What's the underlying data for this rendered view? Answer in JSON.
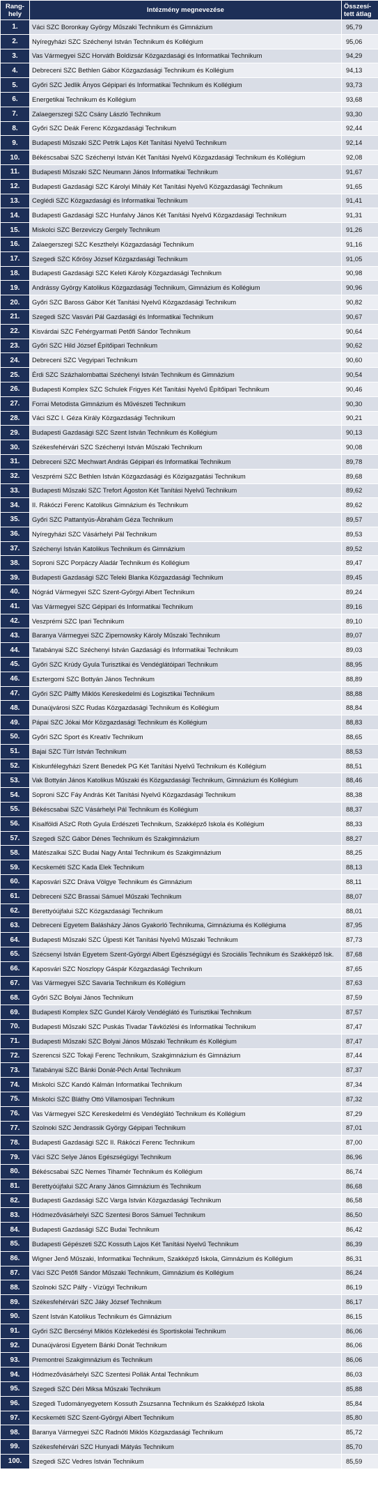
{
  "header": {
    "rank": "Rang-\nhely",
    "name": "Intézmény megnevezése",
    "score": "Összesí-\ntett átlag"
  },
  "rows": [
    [
      "1.",
      "Váci SZC Boronkay György Műszaki Technikum és Gimnázium",
      "95,79"
    ],
    [
      "2.",
      "Nyíregyházi SZC Széchenyi István Technikum és Kollégium",
      "95,06"
    ],
    [
      "3.",
      "Vas Vármegyei SZC Horváth Boldizsár Közgazdasági és Informatikai Technikum",
      "94,29"
    ],
    [
      "4.",
      "Debreceni SZC Bethlen Gábor Közgazdasági Technikum és Kollégium",
      "94,13"
    ],
    [
      "5.",
      "Győri SZC Jedlik Ányos Gépipari és Informatikai Technikum és Kollégium",
      "93,73"
    ],
    [
      "6.",
      "Energetikai Technikum és Kollégium",
      "93,68"
    ],
    [
      "7.",
      "Zalaegerszegi SZC Csány László Technikum",
      "93,30"
    ],
    [
      "8.",
      "Győri SZC Deák Ferenc Közgazdasági Technikum",
      "92,44"
    ],
    [
      "9.",
      "Budapesti Műszaki SZC Petrik Lajos Két Tanítási Nyelvű Technikum",
      "92,14"
    ],
    [
      "10.",
      "Békéscsabai SZC Széchenyi István Két Tanítási Nyelvű Közgazdasági Technikum és Kollégium",
      "92,08"
    ],
    [
      "11.",
      "Budapesti Műszaki SZC Neumann János Informatikai Technikum",
      "91,67"
    ],
    [
      "12.",
      "Budapesti Gazdasági SZC Károlyi Mihály Két Tanítási Nyelvű Közgazdasági Technikum",
      "91,65"
    ],
    [
      "13.",
      "Ceglédi SZC Közgazdasági és Informatikai Technikum",
      "91,41"
    ],
    [
      "14.",
      "Budapesti Gazdasági SZC Hunfalvy János Két Tanítási Nyelvű Közgazdasági Technikum",
      "91,31"
    ],
    [
      "15.",
      "Miskolci SZC Berzeviczy Gergely Technikum",
      "91,26"
    ],
    [
      "16.",
      "Zalaegerszegi SZC Keszthelyi Közgazdasági Technikum",
      "91,16"
    ],
    [
      "17.",
      "Szegedi SZC Kőrösy József Közgazdasági Technikum",
      "91,05"
    ],
    [
      "18.",
      "Budapesti Gazdasági SZC Keleti Károly Közgazdasági Technikum",
      "90,98"
    ],
    [
      "19.",
      "Andrássy György Katolikus Közgazdasági Technikum, Gimnázium és Kollégium",
      "90,96"
    ],
    [
      "20.",
      "Győri SZC Baross Gábor Két Tanítási Nyelvű Közgazdasági Technikum",
      "90,82"
    ],
    [
      "21.",
      "Szegedi SZC Vasvári Pál Gazdasági és Informatikai Technikum",
      "90,67"
    ],
    [
      "22.",
      "Kisvárdai SZC Fehérgyarmati Petőfi Sándor Technikum",
      "90,64"
    ],
    [
      "23.",
      "Győri SZC Hild József Építőipari Technikum",
      "90,62"
    ],
    [
      "24.",
      "Debreceni SZC Vegyipari Technikum",
      "90,60"
    ],
    [
      "25.",
      "Érdi SZC Százhalombattai Széchenyi István Technikum és Gimnázium",
      "90,54"
    ],
    [
      "26.",
      "Budapesti Komplex SZC Schulek Frigyes Két Tanítási Nyelvű Építőipari Technikum",
      "90,46"
    ],
    [
      "27.",
      "Forrai Metodista Gimnázium és Művészeti Technikum",
      "90,30"
    ],
    [
      "28.",
      "Váci SZC I. Géza Király Közgazdasági Technikum",
      "90,21"
    ],
    [
      "29.",
      "Budapesti Gazdasági SZC Szent István Technikum és Kollégium",
      "90,13"
    ],
    [
      "30.",
      "Székesfehérvári SZC Széchenyi István Műszaki Technikum",
      "90,08"
    ],
    [
      "31.",
      "Debreceni SZC Mechwart András Gépipari és Informatikai Technikum",
      "89,78"
    ],
    [
      "32.",
      "Veszprémi SZC Bethlen István Közgazdasági és Közigazgatási Technikum",
      "89,68"
    ],
    [
      "33.",
      "Budapesti Műszaki SZC Trefort Ágoston Két Tanítási Nyelvű Technikum",
      "89,62"
    ],
    [
      "34.",
      "II. Rákóczi Ferenc Katolikus Gimnázium és Technikum",
      "89,62"
    ],
    [
      "35.",
      "Győri SZC Pattantyús-Ábrahám Géza Technikum",
      "89,57"
    ],
    [
      "36.",
      "Nyíregyházi SZC Vásárhelyi Pál Technikum",
      "89,53"
    ],
    [
      "37.",
      "Széchenyi István Katolikus Technikum és Gimnázium",
      "89,52"
    ],
    [
      "38.",
      "Soproni SZC Porpáczy Aladár Technikum és Kollégium",
      "89,47"
    ],
    [
      "39.",
      "Budapesti Gazdasági SZC Teleki Blanka Közgazdasági Technikum",
      "89,45"
    ],
    [
      "40.",
      "Nógrád Vármegyei SZC Szent-Györgyi Albert Technikum",
      "89,24"
    ],
    [
      "41.",
      "Vas Vármegyei SZC Gépipari és Informatikai Technikum",
      "89,16"
    ],
    [
      "42.",
      "Veszprémi SZC Ipari Technikum",
      "89,10"
    ],
    [
      "43.",
      "Baranya Vármegyei SZC Zipernowsky Károly Műszaki Technikum",
      "89,07"
    ],
    [
      "44.",
      "Tatabányai SZC Széchenyi István Gazdasági és Informatikai Technikum",
      "89,03"
    ],
    [
      "45.",
      "Győri SZC Krúdy Gyula Turisztikai és Vendéglátóipari Technikum",
      "88,95"
    ],
    [
      "46.",
      "Esztergomi SZC Bottyán János Technikum",
      "88,89"
    ],
    [
      "47.",
      "Győri SZC Pálffy Miklós Kereskedelmi és Logisztikai Technikum",
      "88,88"
    ],
    [
      "48.",
      "Dunaújvárosi SZC Rudas Közgazdasági Technikum és Kollégium",
      "88,84"
    ],
    [
      "49.",
      "Pápai SZC Jókai Mór Közgazdasági Technikum és Kollégium",
      "88,83"
    ],
    [
      "50.",
      "Győri SZC Sport és Kreatív Technikum",
      "88,65"
    ],
    [
      "51.",
      "Bajai SZC Türr István Technikum",
      "88,53"
    ],
    [
      "52.",
      "Kiskunfélegyházi Szent Benedek PG Két Tanítási Nyelvű Technikum és Kollégium",
      "88,51"
    ],
    [
      "53.",
      "Vak Bottyán János Katolikus Műszaki és Közgazdasági Technikum, Gimnázium és Kollégium",
      "88,46"
    ],
    [
      "54.",
      "Soproni SZC Fáy András Két Tanítási Nyelvű Közgazdasági Technikum",
      "88,38"
    ],
    [
      "55.",
      "Békéscsabai SZC Vásárhelyi Pál Technikum és Kollégium",
      "88,37"
    ],
    [
      "56.",
      "Kisalföldi ASzC Roth Gyula Erdészeti Technikum, Szakképző Iskola és Kollégium",
      "88,33"
    ],
    [
      "57.",
      "Szegedi SZC Gábor Dénes Technikum és Szakgimnázium",
      "88,27"
    ],
    [
      "58.",
      "Mátészalkai SZC Budai Nagy Antal Technikum és Szakgimnázium",
      "88,25"
    ],
    [
      "59.",
      "Kecskeméti SZC Kada Elek Technikum",
      "88,13"
    ],
    [
      "60.",
      "Kaposvári SZC Dráva Völgye Technikum és Gimnázium",
      "88,11"
    ],
    [
      "61.",
      "Debreceni SZC Brassai Sámuel Műszaki Technikum",
      "88,07"
    ],
    [
      "62.",
      "Berettyóújfalui SZC Közgazdasági Technikum",
      "88,01"
    ],
    [
      "63.",
      "Debreceni Egyetem Balásházy János Gyakorló Technikuma, Gimnáziuma és Kollégiuma",
      "87,95"
    ],
    [
      "64.",
      "Budapesti Műszaki SZC Újpesti Két Tanítási Nyelvű Műszaki Technikum",
      "87,73"
    ],
    [
      "65.",
      "Szécsenyi István Egyetem Szent-Györgyi Albert Egészségügyi és Szociális Technikum és Szakképző Isk.",
      "87,68"
    ],
    [
      "66.",
      "Kaposvári SZC Noszlopy Gáspár Közgazdasági Technikum",
      "87,65"
    ],
    [
      "67.",
      "Vas Vármegyei SZC Savaria Technikum és Kollégium",
      "87,63"
    ],
    [
      "68.",
      "Győri SZC Bolyai János Technikum",
      "87,59"
    ],
    [
      "69.",
      "Budapesti Komplex SZC Gundel Károly Vendéglátó és Turisztikai Technikum",
      "87,57"
    ],
    [
      "70.",
      "Budapesti Műszaki SZC Puskás Tivadar Távközlési és Informatikai Technikum",
      "87,47"
    ],
    [
      "71.",
      "Budapesti Műszaki SZC Bolyai János Műszaki Technikum és Kollégium",
      "87,47"
    ],
    [
      "72.",
      "Szerencsi SZC Tokaji Ferenc Technikum, Szakgimnázium és Gimnázium",
      "87,44"
    ],
    [
      "73.",
      "Tatabányai SZC Bánki Donát-Péch Antal Technikum",
      "87,37"
    ],
    [
      "74.",
      "Miskolci SZC Kandó Kálmán Informatikai Technikum",
      "87,34"
    ],
    [
      "75.",
      "Miskolci SZC Bláthy Ottó Villamosipari Technikum",
      "87,32"
    ],
    [
      "76.",
      "Vas Vármegyei SZC Kereskedelmi és Vendéglátó Technikum és Kollégium",
      "87,29"
    ],
    [
      "77.",
      "Szolnoki SZC Jendrassik György Gépipari Technikum",
      "87,01"
    ],
    [
      "78.",
      "Budapesti Gazdasági SZC II. Rákóczi Ferenc Technikum",
      "87,00"
    ],
    [
      "79.",
      "Váci SZC Selye János Egészségügyi Technikum",
      "86,96"
    ],
    [
      "80.",
      "Békéscsabai SZC Nemes Tihamér Technikum és Kollégium",
      "86,74"
    ],
    [
      "81.",
      "Berettyóújfalui SZC Arany János Gimnázium és Technikum",
      "86,68"
    ],
    [
      "82.",
      "Budapesti Gazdasági SZC Varga István Közgazdasági Technikum",
      "86,58"
    ],
    [
      "83.",
      "Hódmezővásárhelyi SZC Szentesi Boros Sámuel Technikum",
      "86,50"
    ],
    [
      "84.",
      "Budapesti Gazdasági SZC Budai Technikum",
      "86,42"
    ],
    [
      "85.",
      "Budapesti Gépészeti SZC Kossuth Lajos Két Tanítási Nyelvű Technikum",
      "86,39"
    ],
    [
      "86.",
      "Wigner Jenő Műszaki, Informatikai Technikum, Szakképző Iskola, Gimnázium és Kollégium",
      "86,31"
    ],
    [
      "87.",
      "Váci SZC Petőfi Sándor Műszaki Technikum, Gimnázium és Kollégium",
      "86,24"
    ],
    [
      "88.",
      "Szolnoki SZC Pálfy - Vízügyi Technikum",
      "86,19"
    ],
    [
      "89.",
      "Székesfehérvári SZC Jáky József Technikum",
      "86,17"
    ],
    [
      "90.",
      "Szent István Katolikus Technikum és Gimnázium",
      "86,15"
    ],
    [
      "91.",
      "Győri SZC Bercsényi Miklós Közlekedési és Sportiskolai Technikum",
      "86,06"
    ],
    [
      "92.",
      "Dunaújvárosi Egyetem Bánki Donát Technikum",
      "86,06"
    ],
    [
      "93.",
      "Premontrei Szakgimnázium és Technikum",
      "86,06"
    ],
    [
      "94.",
      "Hódmezővásárhelyi SZC Szentesi Pollák Antal Technikum",
      "86,03"
    ],
    [
      "95.",
      "Szegedi SZC Déri Miksa Műszaki Technikum",
      "85,88"
    ],
    [
      "96.",
      "Szegedi Tudományegyetem Kossuth Zsuzsanna Technikum és Szakképző Iskola",
      "85,84"
    ],
    [
      "97.",
      "Kecskeméti SZC Szent-Györgyi Albert Technikum",
      "85,80"
    ],
    [
      "98.",
      "Baranya Vármegyei SZC Radnóti Miklós Közgazdasági Technikum",
      "85,72"
    ],
    [
      "99.",
      "Székesfehérvári SZC Hunyadi Mátyás Technikum",
      "85,70"
    ],
    [
      "100.",
      "Szegedi SZC Vedres István Technikum",
      "85,59"
    ]
  ]
}
